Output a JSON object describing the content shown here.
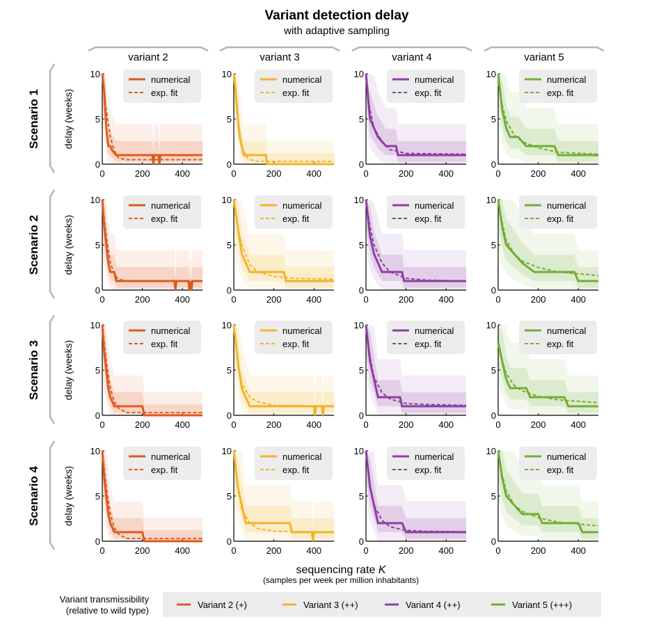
{
  "figure": {
    "title": "Variant detection delay",
    "subtitle": "with adaptive sampling",
    "columns": [
      "variant 2",
      "variant 3",
      "variant 4",
      "variant 5"
    ],
    "rows": [
      "Scenario 1",
      "Scenario 2",
      "Scenario 3",
      "Scenario 4"
    ],
    "ylabel": "delay (weeks)",
    "xlabel_main": "sequencing rate ",
    "xlabel_var": "K",
    "xlabel_sub": "(samples per week per million inhabitants)",
    "panel_legend": {
      "numerical": "numerical",
      "fit": "exp. fit"
    },
    "bottom_legend": {
      "title_line1": "Variant transmissibility",
      "title_line2": "(relative to wild type)",
      "items": [
        "Variant 2 (+)",
        "Variant 3 (++)",
        "Variant 4 (++)",
        "Variant 5 (+++)"
      ]
    },
    "colors": {
      "variant 2": "#dd5a1e",
      "variant 3": "#f0b429",
      "variant 4": "#8b3fa1",
      "variant 5": "#72ad35",
      "legend_bg": "#ececec",
      "bracket": "#b5b5b5"
    }
  },
  "chart_data": {
    "type": "line",
    "xlim": [
      0,
      500
    ],
    "ylim": [
      0,
      10
    ],
    "xticks": [
      0,
      200,
      400
    ],
    "yticks": [
      0,
      5,
      10
    ],
    "panels": [
      {
        "row": "Scenario 1",
        "col": "variant 2",
        "numerical": [
          [
            0,
            10
          ],
          [
            10,
            8
          ],
          [
            15,
            6
          ],
          [
            20,
            4
          ],
          [
            30,
            2
          ],
          [
            40,
            2
          ],
          [
            50,
            1.5
          ],
          [
            70,
            1
          ],
          [
            250,
            1
          ],
          [
            255,
            0
          ],
          [
            260,
            1
          ],
          [
            280,
            1
          ],
          [
            285,
            0
          ],
          [
            290,
            1
          ],
          [
            500,
            1
          ]
        ],
        "fit": [
          [
            0,
            10
          ],
          [
            20,
            6
          ],
          [
            40,
            3
          ],
          [
            60,
            1.5
          ],
          [
            80,
            0.7
          ],
          [
            120,
            0.5
          ],
          [
            500,
            0.5
          ]
        ]
      },
      {
        "row": "Scenario 1",
        "col": "variant 3",
        "numerical": [
          [
            0,
            10
          ],
          [
            10,
            8
          ],
          [
            20,
            5
          ],
          [
            30,
            3
          ],
          [
            40,
            2
          ],
          [
            50,
            1
          ],
          [
            130,
            1
          ],
          [
            160,
            1
          ],
          [
            165,
            0
          ],
          [
            500,
            0
          ]
        ],
        "fit": [
          [
            0,
            10
          ],
          [
            20,
            5
          ],
          [
            40,
            2
          ],
          [
            60,
            0.9
          ],
          [
            80,
            0.5
          ],
          [
            120,
            0.3
          ],
          [
            500,
            0.3
          ]
        ]
      },
      {
        "row": "Scenario 1",
        "col": "variant 4",
        "numerical": [
          [
            0,
            10
          ],
          [
            20,
            5
          ],
          [
            40,
            4
          ],
          [
            60,
            3
          ],
          [
            100,
            2
          ],
          [
            150,
            2
          ],
          [
            160,
            1
          ],
          [
            500,
            1
          ]
        ],
        "fit": [
          [
            0,
            9
          ],
          [
            20,
            6
          ],
          [
            40,
            4
          ],
          [
            80,
            2.5
          ],
          [
            120,
            1.6
          ],
          [
            200,
            1.2
          ],
          [
            500,
            1.1
          ]
        ]
      },
      {
        "row": "Scenario 1",
        "col": "variant 5",
        "numerical": [
          [
            0,
            10
          ],
          [
            20,
            6
          ],
          [
            40,
            4
          ],
          [
            60,
            3
          ],
          [
            100,
            3
          ],
          [
            140,
            2
          ],
          [
            280,
            2
          ],
          [
            300,
            1
          ],
          [
            500,
            1
          ]
        ],
        "fit": [
          [
            0,
            9
          ],
          [
            20,
            6.5
          ],
          [
            40,
            4.8
          ],
          [
            80,
            3.2
          ],
          [
            120,
            2.5
          ],
          [
            200,
            1.8
          ],
          [
            300,
            1.3
          ],
          [
            500,
            1.1
          ]
        ]
      },
      {
        "row": "Scenario 2",
        "col": "variant 2",
        "numerical": [
          [
            0,
            10
          ],
          [
            10,
            7
          ],
          [
            20,
            5
          ],
          [
            30,
            3
          ],
          [
            40,
            2
          ],
          [
            60,
            2
          ],
          [
            70,
            1
          ],
          [
            360,
            1
          ],
          [
            365,
            0
          ],
          [
            370,
            1
          ],
          [
            430,
            1
          ],
          [
            435,
            0
          ],
          [
            440,
            1
          ],
          [
            445,
            0
          ],
          [
            450,
            1
          ],
          [
            500,
            1
          ]
        ],
        "fit": [
          [
            0,
            10
          ],
          [
            20,
            6
          ],
          [
            40,
            3
          ],
          [
            60,
            1.8
          ],
          [
            80,
            1.2
          ],
          [
            120,
            1
          ],
          [
            500,
            1
          ]
        ]
      },
      {
        "row": "Scenario 2",
        "col": "variant 3",
        "numerical": [
          [
            0,
            10
          ],
          [
            20,
            7
          ],
          [
            40,
            4
          ],
          [
            60,
            3
          ],
          [
            80,
            2
          ],
          [
            250,
            2
          ],
          [
            260,
            1
          ],
          [
            500,
            1
          ]
        ],
        "fit": [
          [
            0,
            10
          ],
          [
            20,
            7
          ],
          [
            40,
            5
          ],
          [
            80,
            2.8
          ],
          [
            120,
            2
          ],
          [
            200,
            1.5
          ],
          [
            300,
            1.3
          ],
          [
            500,
            1.2
          ]
        ]
      },
      {
        "row": "Scenario 2",
        "col": "variant 4",
        "numerical": [
          [
            0,
            10
          ],
          [
            20,
            6
          ],
          [
            40,
            4
          ],
          [
            60,
            3
          ],
          [
            80,
            2
          ],
          [
            180,
            2
          ],
          [
            190,
            1
          ],
          [
            500,
            1
          ]
        ],
        "fit": [
          [
            0,
            10
          ],
          [
            20,
            7
          ],
          [
            40,
            5
          ],
          [
            80,
            3
          ],
          [
            120,
            2
          ],
          [
            200,
            1.3
          ],
          [
            300,
            1.1
          ],
          [
            500,
            1
          ]
        ]
      },
      {
        "row": "Scenario 2",
        "col": "variant 5",
        "numerical": [
          [
            0,
            10
          ],
          [
            20,
            7
          ],
          [
            40,
            5
          ],
          [
            80,
            4
          ],
          [
            120,
            3
          ],
          [
            180,
            2
          ],
          [
            380,
            2
          ],
          [
            400,
            1
          ],
          [
            500,
            1
          ]
        ],
        "fit": [
          [
            0,
            10
          ],
          [
            20,
            7.5
          ],
          [
            40,
            5.5
          ],
          [
            80,
            4
          ],
          [
            120,
            3.2
          ],
          [
            200,
            2.5
          ],
          [
            300,
            2
          ],
          [
            500,
            1.6
          ]
        ]
      },
      {
        "row": "Scenario 3",
        "col": "variant 2",
        "numerical": [
          [
            0,
            10
          ],
          [
            10,
            7
          ],
          [
            20,
            5
          ],
          [
            30,
            3
          ],
          [
            40,
            2
          ],
          [
            60,
            1
          ],
          [
            200,
            1
          ],
          [
            210,
            0
          ],
          [
            500,
            0
          ]
        ],
        "fit": [
          [
            0,
            10
          ],
          [
            20,
            6
          ],
          [
            40,
            3
          ],
          [
            60,
            1.5
          ],
          [
            80,
            0.8
          ],
          [
            120,
            0.3
          ],
          [
            500,
            0.3
          ]
        ]
      },
      {
        "row": "Scenario 3",
        "col": "variant 3",
        "numerical": [
          [
            0,
            10
          ],
          [
            20,
            6
          ],
          [
            40,
            3
          ],
          [
            60,
            2
          ],
          [
            80,
            1
          ],
          [
            400,
            1
          ],
          [
            405,
            0
          ],
          [
            410,
            1
          ],
          [
            440,
            1
          ],
          [
            445,
            0
          ],
          [
            450,
            1
          ],
          [
            500,
            1
          ]
        ],
        "fit": [
          [
            0,
            10
          ],
          [
            20,
            6
          ],
          [
            40,
            3.5
          ],
          [
            80,
            2
          ],
          [
            120,
            1.5
          ],
          [
            200,
            1.1
          ],
          [
            500,
            1
          ]
        ]
      },
      {
        "row": "Scenario 3",
        "col": "variant 4",
        "numerical": [
          [
            0,
            10
          ],
          [
            20,
            6
          ],
          [
            40,
            4
          ],
          [
            60,
            2
          ],
          [
            170,
            2
          ],
          [
            180,
            1
          ],
          [
            500,
            1
          ]
        ],
        "fit": [
          [
            0,
            10
          ],
          [
            20,
            6.5
          ],
          [
            40,
            4.2
          ],
          [
            80,
            2.5
          ],
          [
            120,
            1.8
          ],
          [
            200,
            1.3
          ],
          [
            300,
            1.2
          ],
          [
            500,
            1.1
          ]
        ]
      },
      {
        "row": "Scenario 3",
        "col": "variant 5",
        "numerical": [
          [
            0,
            8
          ],
          [
            20,
            6
          ],
          [
            40,
            4
          ],
          [
            60,
            3
          ],
          [
            140,
            3
          ],
          [
            160,
            2
          ],
          [
            330,
            2
          ],
          [
            350,
            1
          ],
          [
            500,
            1
          ]
        ],
        "fit": [
          [
            0,
            8
          ],
          [
            20,
            6
          ],
          [
            40,
            4.6
          ],
          [
            80,
            3.3
          ],
          [
            120,
            2.7
          ],
          [
            200,
            2.1
          ],
          [
            300,
            1.7
          ],
          [
            500,
            1.4
          ]
        ]
      },
      {
        "row": "Scenario 4",
        "col": "variant 2",
        "numerical": [
          [
            0,
            10
          ],
          [
            10,
            7
          ],
          [
            20,
            5
          ],
          [
            30,
            3
          ],
          [
            40,
            2
          ],
          [
            60,
            1
          ],
          [
            200,
            1
          ],
          [
            210,
            0
          ],
          [
            500,
            0
          ]
        ],
        "fit": [
          [
            0,
            10
          ],
          [
            20,
            6
          ],
          [
            40,
            3
          ],
          [
            60,
            1.5
          ],
          [
            80,
            0.8
          ],
          [
            120,
            0.3
          ],
          [
            500,
            0.3
          ]
        ]
      },
      {
        "row": "Scenario 4",
        "col": "variant 3",
        "numerical": [
          [
            0,
            10
          ],
          [
            20,
            6
          ],
          [
            40,
            4
          ],
          [
            60,
            2
          ],
          [
            280,
            2
          ],
          [
            290,
            1
          ],
          [
            390,
            1
          ],
          [
            395,
            0
          ],
          [
            400,
            1
          ],
          [
            500,
            1
          ]
        ],
        "fit": [
          [
            0,
            10
          ],
          [
            20,
            6
          ],
          [
            40,
            3.5
          ],
          [
            80,
            2
          ],
          [
            120,
            1.4
          ],
          [
            200,
            1.1
          ],
          [
            500,
            1
          ]
        ]
      },
      {
        "row": "Scenario 4",
        "col": "variant 4",
        "numerical": [
          [
            0,
            10
          ],
          [
            20,
            6
          ],
          [
            40,
            4
          ],
          [
            60,
            2
          ],
          [
            180,
            2
          ],
          [
            200,
            1
          ],
          [
            500,
            1
          ]
        ],
        "fit": [
          [
            0,
            10
          ],
          [
            20,
            6.2
          ],
          [
            40,
            4
          ],
          [
            80,
            2.3
          ],
          [
            120,
            1.6
          ],
          [
            200,
            1.2
          ],
          [
            300,
            1.1
          ],
          [
            500,
            1.05
          ]
        ]
      },
      {
        "row": "Scenario 4",
        "col": "variant 5",
        "numerical": [
          [
            0,
            10
          ],
          [
            20,
            7
          ],
          [
            40,
            5
          ],
          [
            80,
            4
          ],
          [
            120,
            3
          ],
          [
            200,
            3
          ],
          [
            220,
            2
          ],
          [
            400,
            2
          ],
          [
            420,
            1
          ],
          [
            500,
            1
          ]
        ],
        "fit": [
          [
            0,
            10
          ],
          [
            20,
            7.3
          ],
          [
            40,
            5.6
          ],
          [
            80,
            4
          ],
          [
            120,
            3.3
          ],
          [
            200,
            2.6
          ],
          [
            300,
            2.1
          ],
          [
            500,
            1.7
          ]
        ]
      }
    ]
  }
}
